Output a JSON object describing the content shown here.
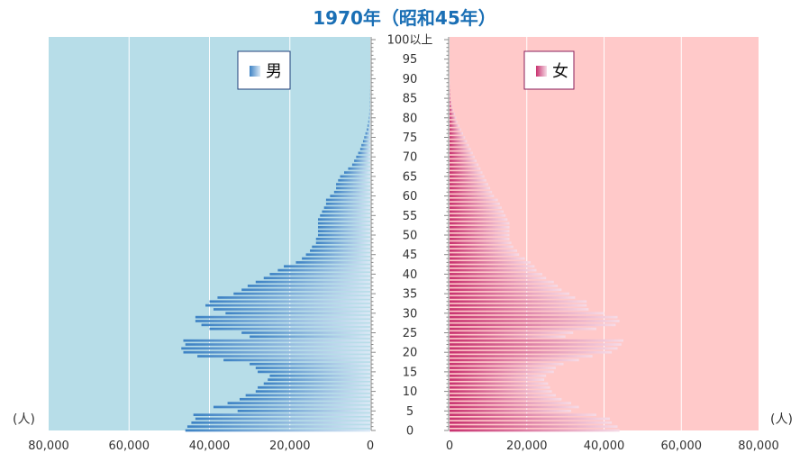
{
  "title": "1970年（昭和45年）",
  "chart_data": {
    "type": "bar",
    "title": "1970年（昭和45年）",
    "unit_label": "(人)",
    "age_tick_labels": [
      "0",
      "5",
      "10",
      "15",
      "20",
      "25",
      "30",
      "35",
      "40",
      "45",
      "50",
      "55",
      "60",
      "65",
      "70",
      "75",
      "80",
      "85",
      "90",
      "95",
      "100以上"
    ],
    "value_tick_labels": [
      "0",
      "20,000",
      "40,000",
      "60,000",
      "80,000"
    ],
    "xlim": [
      0,
      80000
    ],
    "ages": [
      0,
      1,
      2,
      3,
      4,
      5,
      6,
      7,
      8,
      9,
      10,
      11,
      12,
      13,
      14,
      15,
      16,
      17,
      18,
      19,
      20,
      21,
      22,
      23,
      24,
      25,
      26,
      27,
      28,
      29,
      30,
      31,
      32,
      33,
      34,
      35,
      36,
      37,
      38,
      39,
      40,
      41,
      42,
      43,
      44,
      45,
      46,
      47,
      48,
      49,
      50,
      51,
      52,
      53,
      54,
      55,
      56,
      57,
      58,
      59,
      60,
      61,
      62,
      63,
      64,
      65,
      66,
      67,
      68,
      69,
      70,
      71,
      72,
      73,
      74,
      75,
      76,
      77,
      78,
      79,
      80,
      81,
      82,
      83,
      84,
      85,
      86,
      87,
      88,
      89,
      90,
      91,
      92,
      93,
      94,
      95,
      96,
      97,
      98,
      99,
      100
    ],
    "series": [
      {
        "name": "男",
        "color": "#2563a6",
        "values": [
          46000,
          45500,
          44500,
          43500,
          44000,
          33000,
          39000,
          35500,
          32500,
          31000,
          28500,
          28000,
          26500,
          25500,
          25000,
          28000,
          28500,
          30000,
          36500,
          43000,
          46500,
          47000,
          46000,
          46500,
          30000,
          32000,
          40000,
          42000,
          43500,
          43500,
          36000,
          39000,
          41000,
          40000,
          38000,
          34000,
          32000,
          30500,
          28500,
          26500,
          25000,
          23000,
          21500,
          18500,
          17000,
          16000,
          15000,
          14500,
          13500,
          13500,
          13000,
          13000,
          13000,
          13000,
          13000,
          12500,
          12000,
          11500,
          11000,
          11000,
          10000,
          9000,
          8500,
          8500,
          8000,
          7500,
          6500,
          5500,
          4500,
          4000,
          3500,
          3000,
          2500,
          2200,
          1800,
          1500,
          1200,
          900,
          700,
          500,
          350,
          250,
          150,
          100,
          60,
          40,
          30,
          20,
          10,
          5,
          3,
          2,
          1,
          1,
          1,
          1,
          0,
          0,
          0,
          0,
          0
        ]
      },
      {
        "name": "女",
        "color": "#b8286a",
        "values": [
          44000,
          43500,
          42000,
          41500,
          38000,
          31500,
          33500,
          31500,
          29000,
          27500,
          26500,
          26000,
          25500,
          24500,
          25000,
          27000,
          27500,
          29500,
          33500,
          37000,
          42000,
          43500,
          44500,
          45000,
          30000,
          32000,
          38000,
          43000,
          44000,
          43500,
          40000,
          36000,
          35500,
          35500,
          32500,
          31000,
          29000,
          28000,
          27000,
          25000,
          24000,
          22500,
          22000,
          21000,
          19500,
          18000,
          17500,
          16500,
          16000,
          15500,
          15500,
          15500,
          15500,
          15500,
          15000,
          14500,
          14000,
          13500,
          13000,
          12500,
          11500,
          11000,
          10500,
          10000,
          9500,
          9000,
          8500,
          8000,
          7500,
          7000,
          6500,
          6000,
          5500,
          5000,
          4500,
          4000,
          3500,
          3000,
          2500,
          2000,
          1700,
          1400,
          1000,
          700,
          500,
          300,
          200,
          120,
          80,
          50,
          30,
          20,
          12,
          8,
          5,
          3,
          2,
          1,
          1,
          1,
          1
        ]
      }
    ],
    "backgrounds": {
      "male": "#b7dde8",
      "female": "#ffc9c9"
    },
    "legend": [
      {
        "label": "男",
        "placement": "top-right of male panel",
        "color": "#2563a6"
      },
      {
        "label": "女",
        "placement": "top-right of female panel",
        "color": "#b8286a"
      }
    ],
    "grid": true
  }
}
